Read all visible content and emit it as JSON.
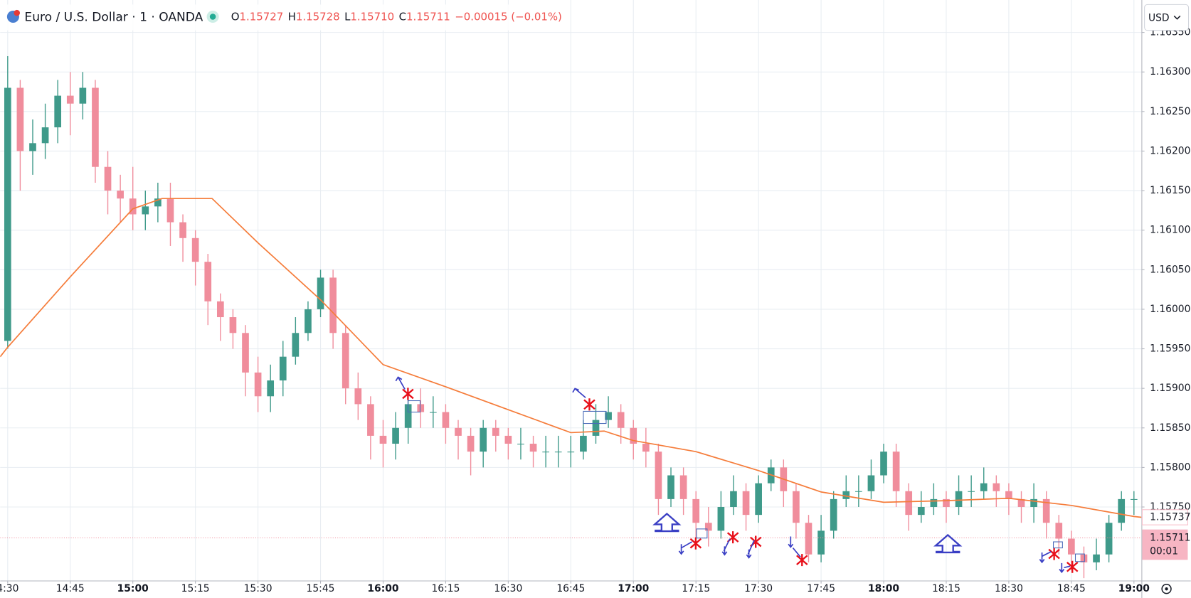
{
  "header": {
    "symbol": "Euro / U.S. Dollar · 1 · OANDA",
    "o_key": "O",
    "o": "1.15727",
    "h_key": "H",
    "h": "1.15728",
    "l_key": "L",
    "l": "1.15710",
    "c_key": "C",
    "c": "1.15711",
    "change": "−0.00015 (−0.01%)",
    "currency": "USD",
    "countdown": "00:01"
  },
  "chart_data": {
    "type": "candlestick",
    "up_color": "#3f9a8a",
    "down_color": "#f08d9c",
    "grid": true,
    "xlim": [
      868.2,
      1141.8
    ],
    "ylim": [
      1.15657,
      1.16391
    ],
    "xticks": [
      {
        "value": 870,
        "label": "4:30"
      },
      {
        "value": 885,
        "label": "14:45"
      },
      {
        "value": 900,
        "label": "15:00"
      },
      {
        "value": 915,
        "label": "15:15"
      },
      {
        "value": 930,
        "label": "15:30"
      },
      {
        "value": 945,
        "label": "15:45"
      },
      {
        "value": 960,
        "label": "16:00"
      },
      {
        "value": 975,
        "label": "16:15"
      },
      {
        "value": 990,
        "label": "16:30"
      },
      {
        "value": 1005,
        "label": "16:45"
      },
      {
        "value": 1020,
        "label": "17:00"
      },
      {
        "value": 1035,
        "label": "17:15"
      },
      {
        "value": 1050,
        "label": "17:30"
      },
      {
        "value": 1065,
        "label": "17:45"
      },
      {
        "value": 1080,
        "label": "18:00"
      },
      {
        "value": 1095,
        "label": "18:15"
      },
      {
        "value": 1110,
        "label": "18:30"
      },
      {
        "value": 1125,
        "label": "18:45"
      },
      {
        "value": 1140,
        "label": "19:00"
      }
    ],
    "yticks": [
      {
        "value": 1.1575,
        "label": "1.15750"
      },
      {
        "value": 1.158,
        "label": "1.15800"
      },
      {
        "value": 1.1585,
        "label": "1.15850"
      },
      {
        "value": 1.159,
        "label": "1.15900"
      },
      {
        "value": 1.1595,
        "label": "1.15950"
      },
      {
        "value": 1.16,
        "label": "1.16000"
      },
      {
        "value": 1.1605,
        "label": "1.16050"
      },
      {
        "value": 1.161,
        "label": "1.16100"
      },
      {
        "value": 1.1615,
        "label": "1.16150"
      },
      {
        "value": 1.162,
        "label": "1.16200"
      },
      {
        "value": 1.1625,
        "label": "1.16250"
      },
      {
        "value": 1.163,
        "label": "1.16300"
      },
      {
        "value": 1.1635,
        "label": "1.16350"
      }
    ],
    "x": [
      870,
      873,
      876,
      879,
      882,
      885,
      888,
      891,
      894,
      897,
      900,
      903,
      906,
      909,
      912,
      915,
      918,
      921,
      924,
      927,
      930,
      933,
      936,
      939,
      942,
      945,
      948,
      951,
      954,
      957,
      960,
      963,
      966,
      969,
      972,
      975,
      978,
      981,
      984,
      987,
      990,
      993,
      996,
      999,
      1002,
      1005,
      1008,
      1011,
      1014,
      1017,
      1020,
      1023,
      1026,
      1029,
      1032,
      1035,
      1038,
      1041,
      1044,
      1047,
      1050,
      1053,
      1056,
      1059,
      1062,
      1065,
      1068,
      1071,
      1074,
      1077,
      1080,
      1083,
      1086,
      1089,
      1092,
      1095,
      1098,
      1101,
      1104,
      1107,
      1110,
      1113,
      1116,
      1119,
      1122,
      1125,
      1128,
      1131,
      1134,
      1137,
      1140
    ],
    "open": [
      1.1596,
      1.1628,
      1.162,
      1.1621,
      1.1623,
      1.1627,
      1.1626,
      1.1628,
      1.1618,
      1.1615,
      1.1614,
      1.1612,
      1.1613,
      1.1614,
      1.1611,
      1.1609,
      1.1606,
      1.1601,
      1.1599,
      1.1597,
      1.1592,
      1.1589,
      1.1591,
      1.1594,
      1.1597,
      1.16,
      1.1604,
      1.1597,
      1.159,
      1.1588,
      1.1584,
      1.1583,
      1.1585,
      1.1588,
      1.1587,
      1.1587,
      1.1585,
      1.1584,
      1.1582,
      1.1585,
      1.1584,
      1.1583,
      1.1583,
      1.1582,
      1.1582,
      1.1582,
      1.1582,
      1.1584,
      1.1586,
      1.1587,
      1.1585,
      1.1583,
      1.1582,
      1.1576,
      1.1579,
      1.1576,
      1.1573,
      1.1572,
      1.1575,
      1.1577,
      1.1574,
      1.1578,
      1.158,
      1.1577,
      1.1573,
      1.1569,
      1.1572,
      1.1576,
      1.1577,
      1.1577,
      1.1579,
      1.1582,
      1.1577,
      1.1574,
      1.1575,
      1.1576,
      1.1575,
      1.1577,
      1.1577,
      1.1578,
      1.1577,
      1.1576,
      1.1575,
      1.1576,
      1.1573,
      1.1571,
      1.1569,
      1.1568,
      1.1569,
      1.1573,
      1.1576
    ],
    "high": [
      1.1632,
      1.1629,
      1.1624,
      1.1626,
      1.1629,
      1.163,
      1.163,
      1.1629,
      1.162,
      1.1617,
      1.1618,
      1.1615,
      1.1616,
      1.1616,
      1.1612,
      1.161,
      1.1607,
      1.1602,
      1.16,
      1.1598,
      1.1594,
      1.1593,
      1.1596,
      1.1599,
      1.1601,
      1.1605,
      1.1605,
      1.1598,
      1.1592,
      1.1589,
      1.1586,
      1.1587,
      1.1589,
      1.159,
      1.1589,
      1.1588,
      1.1586,
      1.1585,
      1.1586,
      1.1586,
      1.1585,
      1.1585,
      1.1584,
      1.1584,
      1.1584,
      1.1584,
      1.1586,
      1.1588,
      1.1589,
      1.1588,
      1.1586,
      1.1585,
      1.1583,
      1.158,
      1.158,
      1.1577,
      1.1575,
      1.1577,
      1.1579,
      1.1578,
      1.1579,
      1.1581,
      1.1581,
      1.1578,
      1.1574,
      1.1574,
      1.1577,
      1.1579,
      1.1579,
      1.1581,
      1.1583,
      1.1583,
      1.1578,
      1.1577,
      1.1578,
      1.1577,
      1.1579,
      1.1579,
      1.158,
      1.1579,
      1.1578,
      1.1577,
      1.1578,
      1.1577,
      1.1574,
      1.1572,
      1.157,
      1.1571,
      1.1574,
      1.1577,
      1.1577
    ],
    "low": [
      1.1595,
      1.1615,
      1.1617,
      1.1619,
      1.1621,
      1.1622,
      1.1624,
      1.1616,
      1.1612,
      1.1611,
      1.161,
      1.161,
      1.1611,
      1.1608,
      1.1606,
      1.1603,
      1.1598,
      1.1596,
      1.1595,
      1.1589,
      1.1587,
      1.1587,
      1.1589,
      1.1593,
      1.1596,
      1.1599,
      1.1595,
      1.1588,
      1.1586,
      1.1581,
      1.158,
      1.1581,
      1.1583,
      1.1585,
      1.1585,
      1.1583,
      1.1581,
      1.1579,
      1.158,
      1.1582,
      1.1581,
      1.1581,
      1.158,
      1.158,
      1.158,
      1.158,
      1.1581,
      1.1583,
      1.1585,
      1.1583,
      1.1581,
      1.158,
      1.1574,
      1.1575,
      1.1574,
      1.1571,
      1.157,
      1.1571,
      1.1574,
      1.1572,
      1.1573,
      1.1577,
      1.1575,
      1.1571,
      1.1568,
      1.1568,
      1.1571,
      1.1575,
      1.1575,
      1.1576,
      1.1578,
      1.1575,
      1.1572,
      1.1573,
      1.1574,
      1.1573,
      1.1574,
      1.1575,
      1.1576,
      1.1575,
      1.1574,
      1.1573,
      1.1573,
      1.1571,
      1.1569,
      1.1567,
      1.1566,
      1.1567,
      1.1568,
      1.1572,
      1.1574
    ],
    "close": [
      1.1628,
      1.162,
      1.1621,
      1.1623,
      1.1627,
      1.1626,
      1.1628,
      1.1618,
      1.1615,
      1.1614,
      1.1612,
      1.1613,
      1.1614,
      1.1611,
      1.1609,
      1.1606,
      1.1601,
      1.1599,
      1.1597,
      1.1592,
      1.1589,
      1.1591,
      1.1594,
      1.1597,
      1.16,
      1.1604,
      1.1597,
      1.159,
      1.1588,
      1.1584,
      1.1583,
      1.1585,
      1.1588,
      1.1587,
      1.1587,
      1.1585,
      1.1584,
      1.1582,
      1.1585,
      1.1584,
      1.1583,
      1.1583,
      1.1582,
      1.1582,
      1.1582,
      1.1582,
      1.1584,
      1.1586,
      1.1587,
      1.1585,
      1.1583,
      1.1582,
      1.1576,
      1.1579,
      1.1576,
      1.1573,
      1.1572,
      1.1575,
      1.1577,
      1.1574,
      1.1578,
      1.158,
      1.1577,
      1.1573,
      1.1569,
      1.1572,
      1.1576,
      1.1577,
      1.1577,
      1.1579,
      1.1582,
      1.1577,
      1.1574,
      1.1575,
      1.1576,
      1.1575,
      1.1577,
      1.1577,
      1.1578,
      1.1577,
      1.1576,
      1.1575,
      1.1576,
      1.1573,
      1.1571,
      1.1569,
      1.1568,
      1.1569,
      1.1573,
      1.1576,
      1.1576
    ],
    "moving_average": {
      "color": "#f57c3a",
      "x": [
        868.2,
        870,
        885,
        900,
        907,
        919,
        930,
        945,
        960,
        975,
        990,
        1005,
        1013,
        1020,
        1035,
        1050,
        1065,
        1080,
        1095,
        1110,
        1125,
        1140,
        1141.8
      ],
      "values": [
        1.1594,
        1.15952,
        1.16041,
        1.16127,
        1.1614,
        1.1614,
        1.16084,
        1.16012,
        1.1593,
        1.15902,
        1.15873,
        1.15844,
        1.15846,
        1.15834,
        1.1582,
        1.15796,
        1.15769,
        1.15756,
        1.15758,
        1.15761,
        1.15752,
        1.15738,
        1.15737
      ]
    },
    "ma_label": {
      "value": 1.15737,
      "label": "1.15737"
    },
    "price_label": {
      "value": 1.15711,
      "label": "1.15711"
    }
  }
}
